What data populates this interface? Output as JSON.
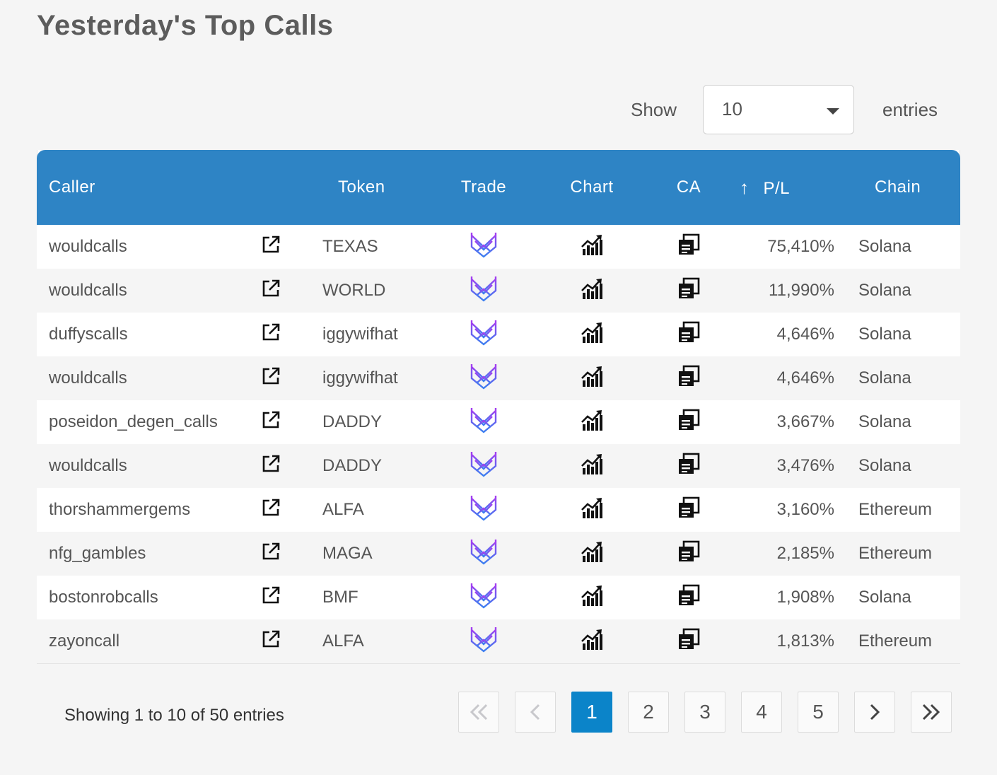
{
  "page": {
    "title": "Yesterday's Top Calls"
  },
  "length_control": {
    "show_label": "Show",
    "selected": "10",
    "entries_label": "entries"
  },
  "table": {
    "columns": {
      "caller": "Caller",
      "token": "Token",
      "trade": "Trade",
      "chart": "Chart",
      "ca": "CA",
      "pl": "P/L",
      "chain": "Chain",
      "sort_icon": "↑"
    },
    "rows": [
      {
        "caller": "wouldcalls",
        "token": "TEXAS",
        "pl": "75,410%",
        "chain": "Solana"
      },
      {
        "caller": "wouldcalls",
        "token": "WORLD",
        "pl": "11,990%",
        "chain": "Solana"
      },
      {
        "caller": "duffyscalls",
        "token": "iggywifhat",
        "pl": "4,646%",
        "chain": "Solana"
      },
      {
        "caller": "wouldcalls",
        "token": "iggywifhat",
        "pl": "4,646%",
        "chain": "Solana"
      },
      {
        "caller": "poseidon_degen_calls",
        "token": "DADDY",
        "pl": "3,667%",
        "chain": "Solana"
      },
      {
        "caller": "wouldcalls",
        "token": "DADDY",
        "pl": "3,476%",
        "chain": "Solana"
      },
      {
        "caller": "thorshammergems",
        "token": "ALFA",
        "pl": "3,160%",
        "chain": "Ethereum"
      },
      {
        "caller": "nfg_gambles",
        "token": "MAGA",
        "pl": "2,185%",
        "chain": "Ethereum"
      },
      {
        "caller": "bostonrobcalls",
        "token": "BMF",
        "pl": "1,908%",
        "chain": "Solana"
      },
      {
        "caller": "zayoncall",
        "token": "ALFA",
        "pl": "1,813%",
        "chain": "Ethereum"
      }
    ]
  },
  "icons": {
    "open": "external-link-icon",
    "trade": "trade-logo-icon",
    "chart": "chart-icon",
    "ca": "copy-icon"
  },
  "colors": {
    "header_bg": "#2e84c5",
    "active_page": "#0b84c9",
    "trade_logo_top": "#a63cf0",
    "trade_logo_bottom": "#3a7ff0"
  },
  "footer": {
    "info": "Showing 1 to 10 of 50 entries",
    "pages": [
      "1",
      "2",
      "3",
      "4",
      "5"
    ],
    "current_page": "1",
    "first_icon": "«",
    "prev_icon": "‹",
    "next_icon": "›",
    "last_icon": "»"
  }
}
